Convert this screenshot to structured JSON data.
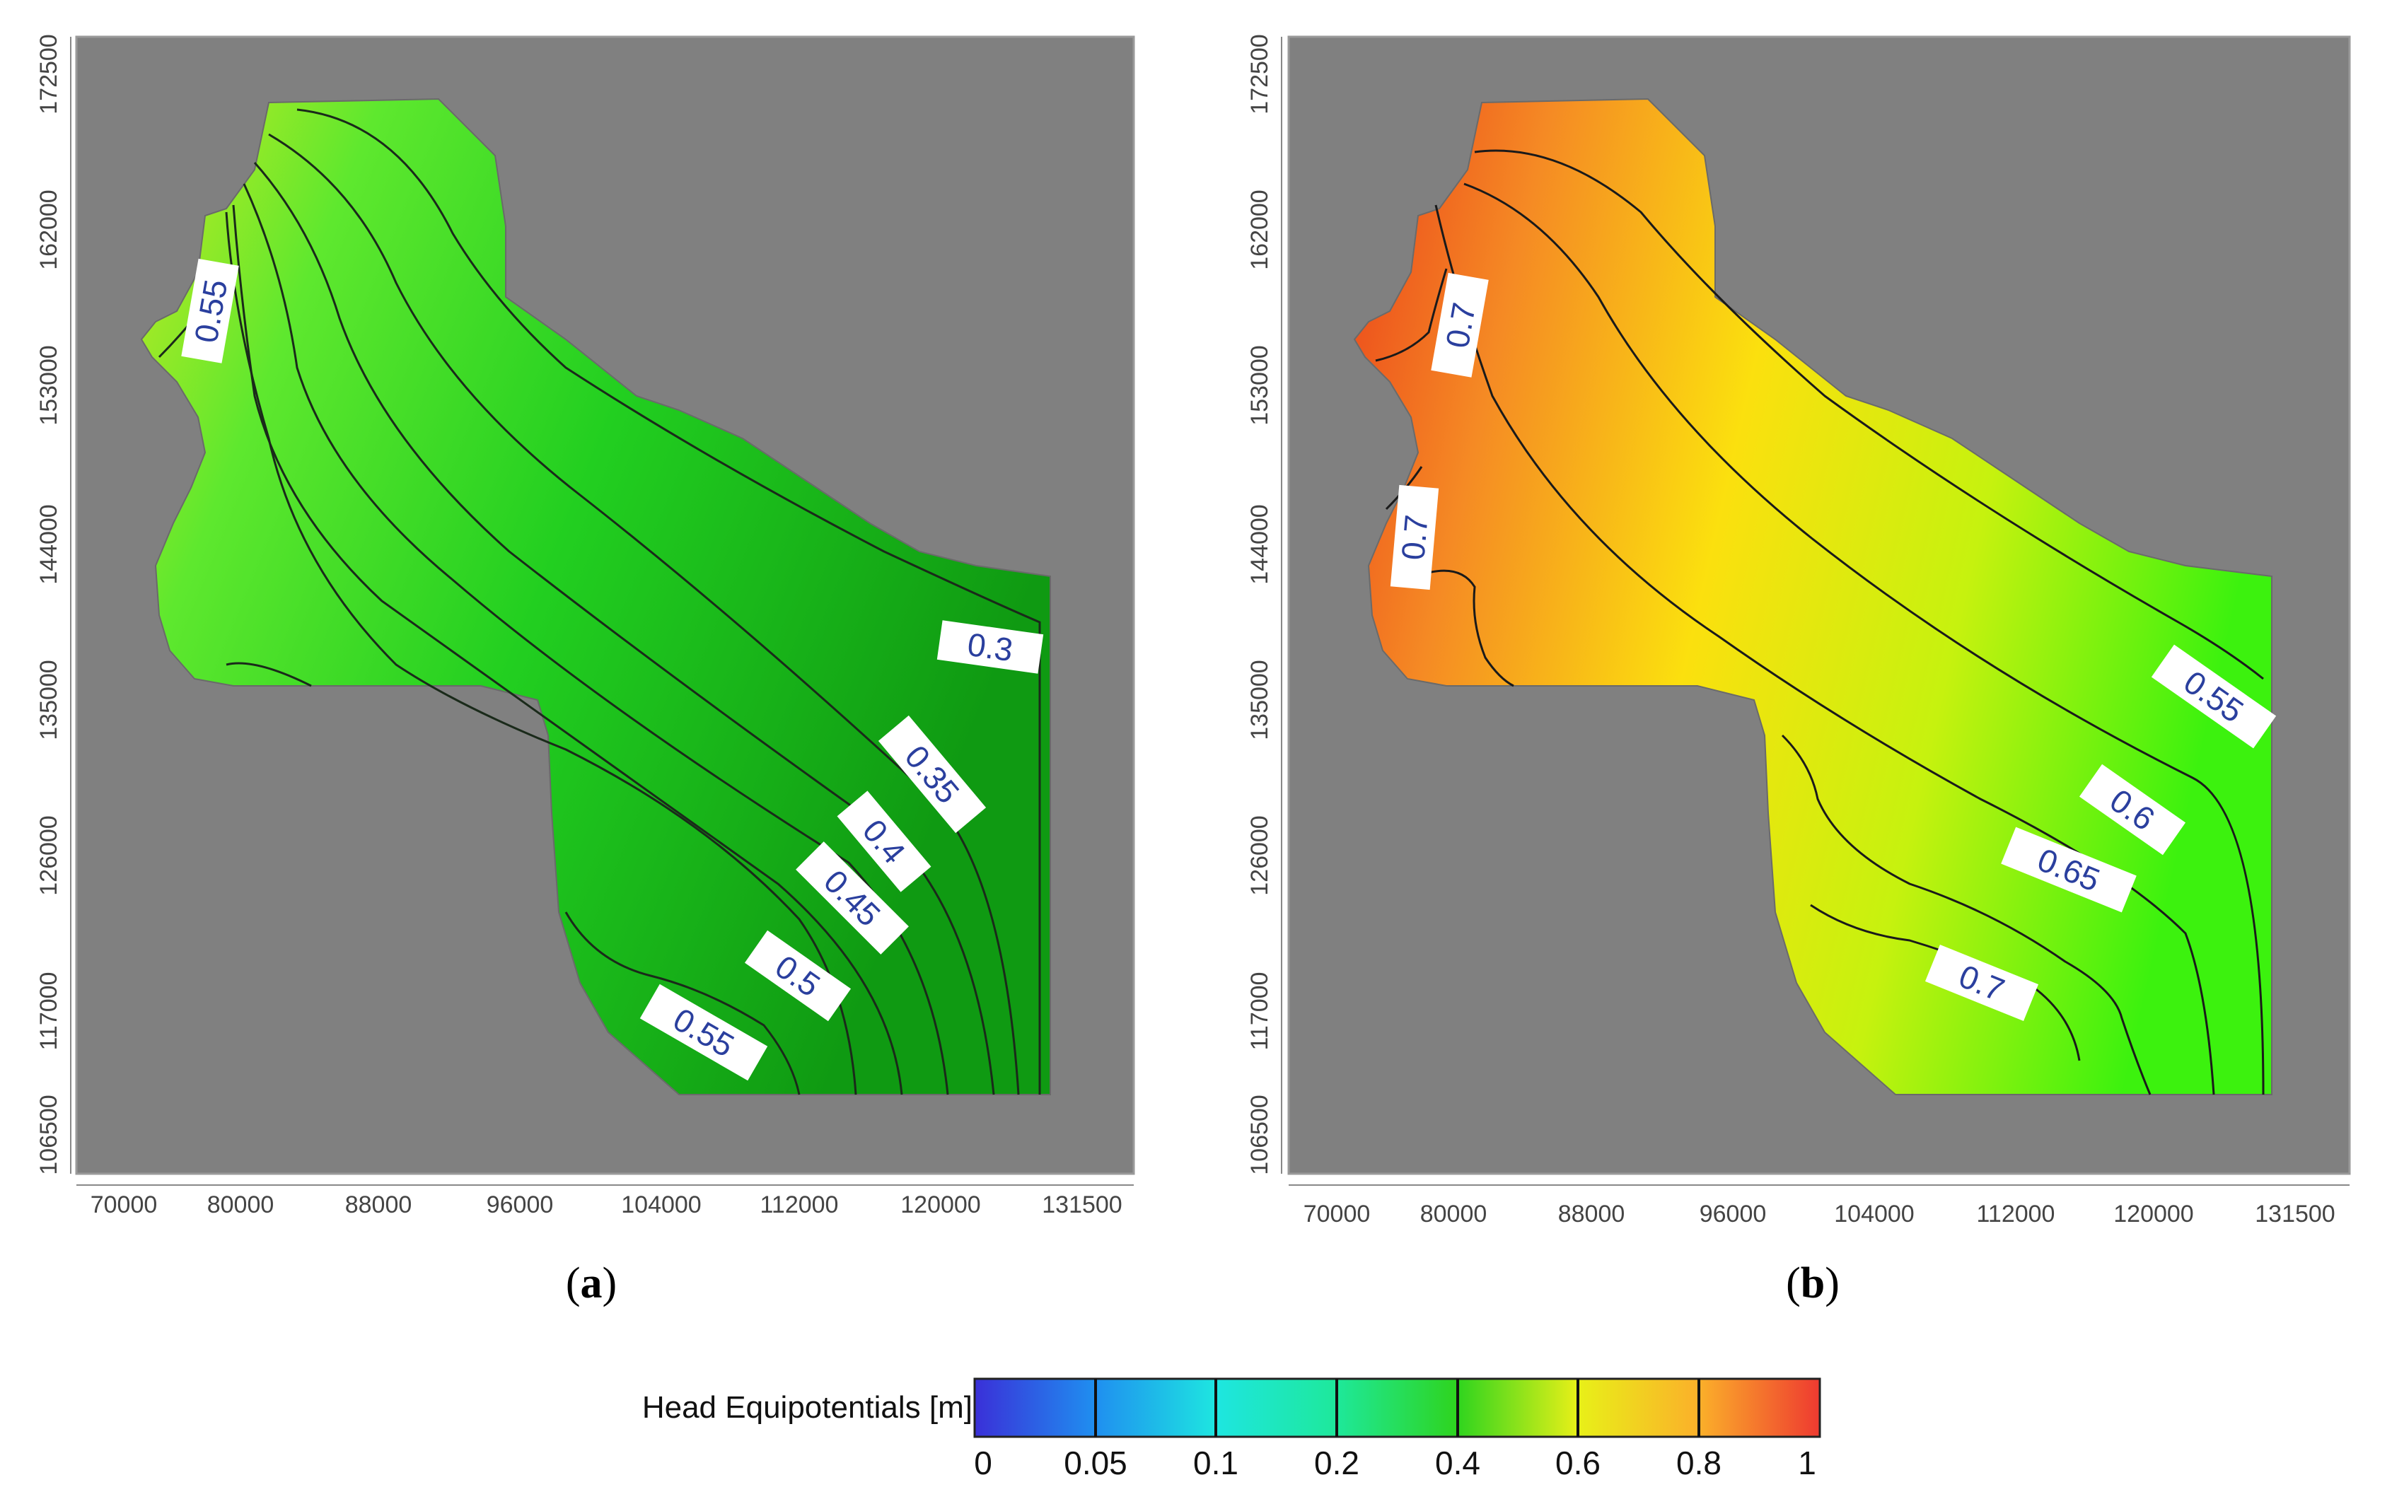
{
  "chart_data": [
    {
      "type": "heatmap",
      "panel": "(a)",
      "letter": "a",
      "x_ticks": [
        "70000",
        "80000",
        "88000",
        "96000",
        "104000",
        "112000",
        "120000",
        "131500"
      ],
      "y_ticks": [
        "172500",
        "162000",
        "153000",
        "144000",
        "135000",
        "126000",
        "117000",
        "106500"
      ],
      "contour_levels": [
        0.3,
        0.35,
        0.4,
        0.45,
        0.5,
        0.55
      ],
      "contour_labels": [
        "0.55",
        "0.3",
        "0.35",
        "0.4",
        "0.45",
        "0.5",
        "0.55"
      ],
      "colors": {
        "background": "#808080",
        "high": "#d4e81c",
        "mid": "#2ee02a",
        "low": "#0f9e12"
      }
    },
    {
      "type": "heatmap",
      "panel": "(b)",
      "letter": "b",
      "x_ticks": [
        "70000",
        "80000",
        "88000",
        "96000",
        "104000",
        "112000",
        "120000",
        "131500"
      ],
      "y_ticks": [
        "172500",
        "162000",
        "153000",
        "144000",
        "135000",
        "126000",
        "117000",
        "106500"
      ],
      "contour_levels": [
        0.55,
        0.6,
        0.65,
        0.7
      ],
      "contour_labels": [
        "0.7",
        "0.7",
        "0.55",
        "0.6",
        "0.65",
        "0.7"
      ],
      "colors": {
        "background": "#808080",
        "high": "#ee3a1c",
        "mid": "#fbe80e",
        "low": "#3cf20e"
      }
    }
  ],
  "colorbar": {
    "title": "Head Equipotentials [m]",
    "ticks": [
      "0",
      "0.05",
      "0.1",
      "0.2",
      "0.4",
      "0.6",
      "0.8",
      "1"
    ],
    "colors": [
      "#3a30d8",
      "#1f8ff0",
      "#1ee6e0",
      "#1ee89a",
      "#2ed41e",
      "#e8f018",
      "#fbb02a",
      "#ee3a30"
    ]
  }
}
